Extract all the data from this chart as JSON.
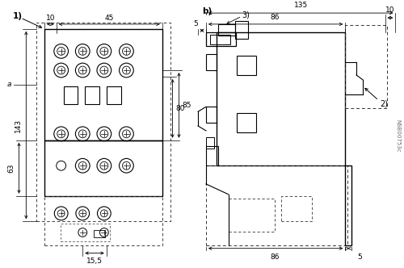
{
  "bg_color": "#ffffff",
  "line_color": "#000000",
  "figsize": [
    5.0,
    3.32
  ],
  "dpi": 100,
  "watermark": "NSB00753c",
  "labels": {
    "view_a": "1)",
    "view_b": "b)",
    "dim_a": "a",
    "dim_10_left": "10",
    "dim_45": "45",
    "dim_80": "80",
    "dim_85": "85",
    "dim_143": "143",
    "dim_63": "63",
    "dim_15_5": "15,5",
    "dim_10_right": "10",
    "dim_86_top": "86",
    "dim_135": "135",
    "dim_5_left": "5",
    "label_3": "3)",
    "label_2": "2)",
    "dim_86_bot": "86",
    "dim_5_right": "5"
  }
}
